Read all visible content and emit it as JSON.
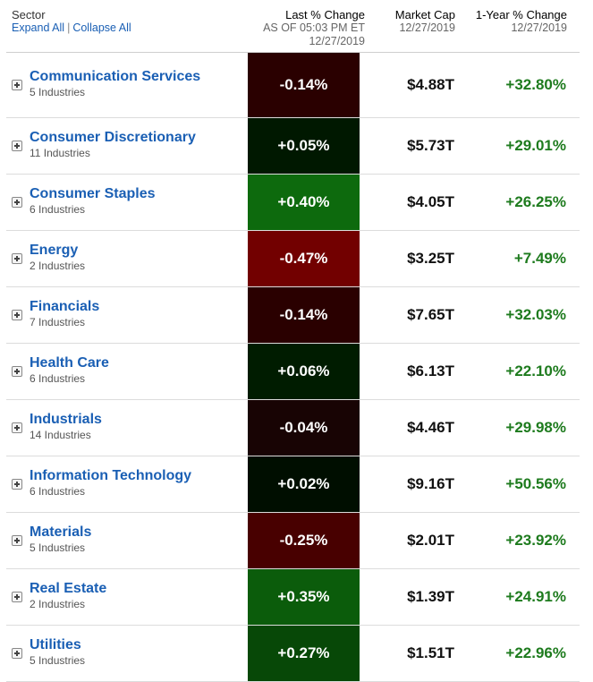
{
  "header": {
    "sector_label": "Sector",
    "expand_all": "Expand All",
    "separator": "|",
    "collapse_all": "Collapse All",
    "last_change_label": "Last % Change",
    "last_change_asof": "AS OF 05:03 PM ET",
    "last_change_date": "12/27/2019",
    "market_cap_label": "Market Cap",
    "market_cap_date": "12/27/2019",
    "one_year_label": "1-Year % Change",
    "one_year_date": "12/27/2019"
  },
  "colors": {
    "link": "#1a5fb4",
    "positive_text": "#1e7b1e"
  },
  "rows": [
    {
      "name": "Communication Services",
      "industries": "5 Industries",
      "change": "-0.14%",
      "change_value": -0.14,
      "market_cap": "$4.88T",
      "one_year": "+32.80%",
      "bg": "#2a0000"
    },
    {
      "name": "Consumer Discretionary",
      "industries": "11 Industries",
      "change": "+0.05%",
      "change_value": 0.05,
      "market_cap": "$5.73T",
      "one_year": "+29.01%",
      "bg": "#001800"
    },
    {
      "name": "Consumer Staples",
      "industries": "6 Industries",
      "change": "+0.40%",
      "change_value": 0.4,
      "market_cap": "$4.05T",
      "one_year": "+26.25%",
      "bg": "#0d6a0d"
    },
    {
      "name": "Energy",
      "industries": "2 Industries",
      "change": "-0.47%",
      "change_value": -0.47,
      "market_cap": "$3.25T",
      "one_year": "+7.49%",
      "bg": "#720000"
    },
    {
      "name": "Financials",
      "industries": "7 Industries",
      "change": "-0.14%",
      "change_value": -0.14,
      "market_cap": "$7.65T",
      "one_year": "+32.03%",
      "bg": "#2a0000"
    },
    {
      "name": "Health Care",
      "industries": "6 Industries",
      "change": "+0.06%",
      "change_value": 0.06,
      "market_cap": "$6.13T",
      "one_year": "+22.10%",
      "bg": "#001c00"
    },
    {
      "name": "Industrials",
      "industries": "14 Industries",
      "change": "-0.04%",
      "change_value": -0.04,
      "market_cap": "$4.46T",
      "one_year": "+29.98%",
      "bg": "#180404"
    },
    {
      "name": "Information Technology",
      "industries": "6 Industries",
      "change": "+0.02%",
      "change_value": 0.02,
      "market_cap": "$9.16T",
      "one_year": "+50.56%",
      "bg": "#000e00"
    },
    {
      "name": "Materials",
      "industries": "5 Industries",
      "change": "-0.25%",
      "change_value": -0.25,
      "market_cap": "$2.01T",
      "one_year": "+23.92%",
      "bg": "#480000"
    },
    {
      "name": "Real Estate",
      "industries": "2 Industries",
      "change": "+0.35%",
      "change_value": 0.35,
      "market_cap": "$1.39T",
      "one_year": "+24.91%",
      "bg": "#0b5c0b"
    },
    {
      "name": "Utilities",
      "industries": "5 Industries",
      "change": "+0.27%",
      "change_value": 0.27,
      "market_cap": "$1.51T",
      "one_year": "+22.96%",
      "bg": "#074807"
    }
  ]
}
